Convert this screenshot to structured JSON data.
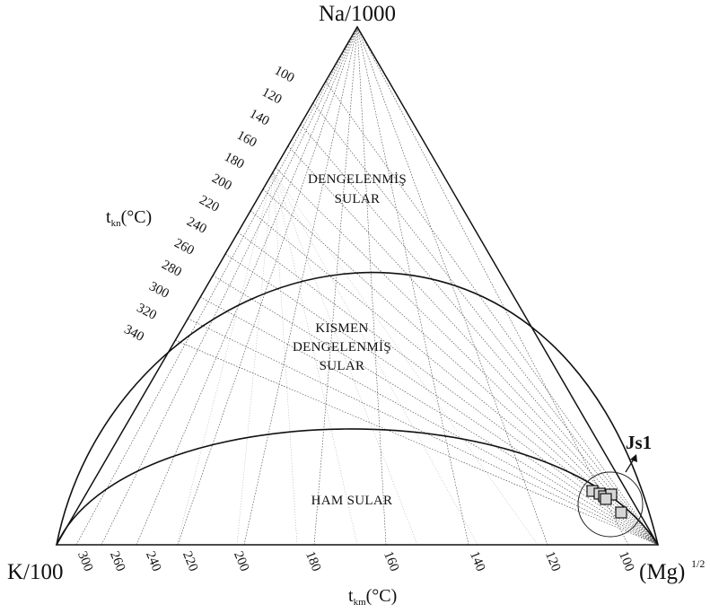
{
  "chart_data": {
    "type": "ternary",
    "corners": {
      "top": "Na/1000",
      "left": "K/100",
      "right": "(Mg)",
      "right_superscript": "1/2"
    },
    "axes": {
      "tkn": {
        "label_main": "t",
        "label_sub": "kn",
        "label_unit": "(°C)",
        "ticks": [
          100,
          120,
          140,
          160,
          180,
          200,
          220,
          240,
          260,
          280,
          300,
          320,
          340
        ]
      },
      "tkm": {
        "label_main": "t",
        "label_sub": "km",
        "label_unit": "(°C)",
        "ticks": [
          100,
          120,
          140,
          160,
          180,
          200,
          220,
          240,
          260,
          300
        ]
      }
    },
    "regions": [
      {
        "lines": [
          "DENGELENMİŞ",
          "SULAR"
        ]
      },
      {
        "lines": [
          "KISMEN",
          "DENGELENMİŞ",
          "SULAR"
        ]
      },
      {
        "lines": [
          "HAM SULAR"
        ]
      }
    ],
    "samples": {
      "name": "Js1",
      "points_count": 6
    }
  }
}
